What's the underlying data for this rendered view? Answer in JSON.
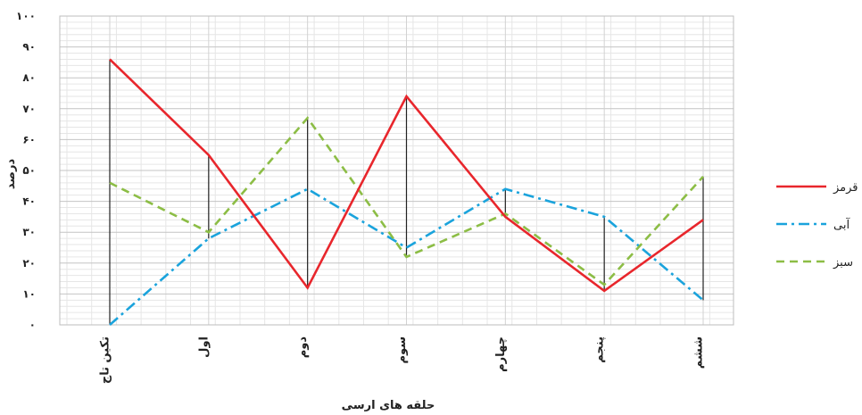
{
  "chart_data": {
    "type": "line",
    "xlabel": "حلقه های ارسی",
    "ylabel": "درصد",
    "ylim": [
      0,
      100
    ],
    "y_ticks": [
      0,
      10,
      20,
      30,
      40,
      50,
      60,
      70,
      80,
      90,
      100
    ],
    "y_tick_labels": [
      "۰",
      "۱۰",
      "۲۰",
      "۳۰",
      "۴۰",
      "۵۰",
      "۶۰",
      "۷۰",
      "۸۰",
      "۹۰",
      "۱۰۰"
    ],
    "grid": true,
    "legend_position": "right",
    "categories": [
      "تکین تاج",
      "اول",
      "دوم",
      "سوم",
      "چهارم",
      "پنجم",
      "ششم"
    ],
    "series": [
      {
        "name": "قرمز",
        "color": "#e8262c",
        "style": "solid",
        "values": [
          86,
          55,
          12,
          74,
          35,
          11,
          34
        ]
      },
      {
        "name": "آبی",
        "color": "#1aa3dc",
        "style": "dash-dot",
        "values": [
          0,
          28,
          44,
          25,
          44,
          35,
          8
        ]
      },
      {
        "name": "سبز",
        "color": "#8cbd45",
        "style": "dashed",
        "values": [
          46,
          30,
          67,
          22,
          36,
          13,
          48
        ]
      }
    ]
  }
}
